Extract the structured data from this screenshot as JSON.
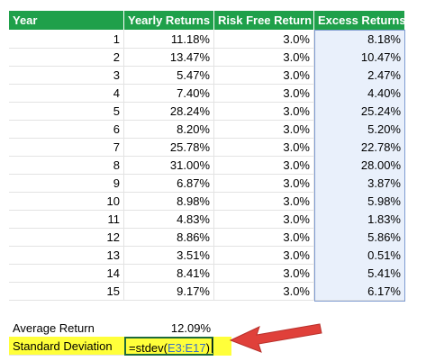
{
  "headers": [
    "Year",
    "Yearly Returns",
    "Risk Free Return",
    "Excess Returns"
  ],
  "rows": [
    {
      "year": "1",
      "yearly": "11.18%",
      "rf": "3.0%",
      "excess": "8.18%"
    },
    {
      "year": "2",
      "yearly": "13.47%",
      "rf": "3.0%",
      "excess": "10.47%"
    },
    {
      "year": "3",
      "yearly": "5.47%",
      "rf": "3.0%",
      "excess": "2.47%"
    },
    {
      "year": "4",
      "yearly": "7.40%",
      "rf": "3.0%",
      "excess": "4.40%"
    },
    {
      "year": "5",
      "yearly": "28.24%",
      "rf": "3.0%",
      "excess": "25.24%"
    },
    {
      "year": "6",
      "yearly": "8.20%",
      "rf": "3.0%",
      "excess": "5.20%"
    },
    {
      "year": "7",
      "yearly": "25.78%",
      "rf": "3.0%",
      "excess": "22.78%"
    },
    {
      "year": "8",
      "yearly": "31.00%",
      "rf": "3.0%",
      "excess": "28.00%"
    },
    {
      "year": "9",
      "yearly": "6.87%",
      "rf": "3.0%",
      "excess": "3.87%"
    },
    {
      "year": "10",
      "yearly": "8.98%",
      "rf": "3.0%",
      "excess": "5.98%"
    },
    {
      "year": "11",
      "yearly": "4.83%",
      "rf": "3.0%",
      "excess": "1.83%"
    },
    {
      "year": "12",
      "yearly": "8.86%",
      "rf": "3.0%",
      "excess": "5.86%"
    },
    {
      "year": "13",
      "yearly": "3.51%",
      "rf": "3.0%",
      "excess": "0.51%"
    },
    {
      "year": "14",
      "yearly": "8.41%",
      "rf": "3.0%",
      "excess": "5.41%"
    },
    {
      "year": "15",
      "yearly": "9.17%",
      "rf": "3.0%",
      "excess": "6.17%"
    }
  ],
  "summary": {
    "average_label": "Average Return",
    "average_value": "12.09%",
    "stdev_label": "Standard Deviation",
    "formula_prefix": "=stdev(",
    "formula_ref": "E3:E17",
    "formula_suffix": ")"
  },
  "colors": {
    "header_bg": "#1fa04a",
    "highlight": "#ffff3a",
    "range_fill": "#e9f0fb",
    "range_border": "#7f9bd1",
    "arrow": "#e0403a",
    "reference_text": "#3a6fc4"
  }
}
